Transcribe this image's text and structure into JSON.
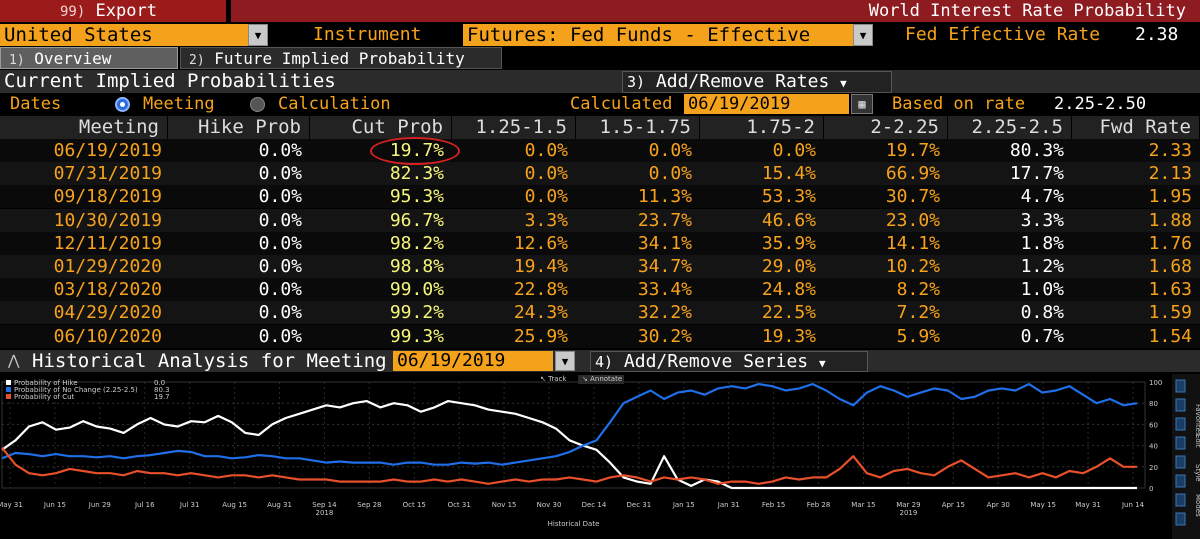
{
  "toolbar": {
    "export_key": "99)",
    "export_label": "Export",
    "title": "World Interest Rate Probability"
  },
  "selectors": {
    "country": "United States",
    "instrument_label": "Instrument",
    "instrument": "Futures: Fed Funds - Effective",
    "fed_rate_label": "Fed Effective Rate",
    "fed_rate_value": "2.38"
  },
  "tabs": [
    {
      "key": "1)",
      "label": "Overview"
    },
    {
      "key": "2)",
      "label": "Future Implied Probability"
    }
  ],
  "current": {
    "title": "Current Implied Probabilities",
    "add_remove_key": "3)",
    "add_remove_label": "Add/Remove Rates",
    "dates_label": "Dates",
    "meeting_label": "Meeting",
    "calculation_label": "Calculation",
    "calculated_label": "Calculated",
    "calculated_date": "06/19/2019",
    "based_on_label": "Based on rate",
    "based_on_value": "2.25-2.50"
  },
  "table": {
    "headers": [
      "Meeting",
      "Hike Prob",
      "Cut Prob",
      "1.25-1.5",
      "1.5-1.75",
      "1.75-2",
      "2-2.25",
      "2.25-2.5",
      "Fwd Rate"
    ],
    "rows": [
      [
        "06/19/2019",
        "0.0%",
        "19.7%",
        "0.0%",
        "0.0%",
        "0.0%",
        "19.7%",
        "80.3%",
        "2.33"
      ],
      [
        "07/31/2019",
        "0.0%",
        "82.3%",
        "0.0%",
        "0.0%",
        "15.4%",
        "66.9%",
        "17.7%",
        "2.13"
      ],
      [
        "09/18/2019",
        "0.0%",
        "95.3%",
        "0.0%",
        "11.3%",
        "53.3%",
        "30.7%",
        "4.7%",
        "1.95"
      ],
      [
        "10/30/2019",
        "0.0%",
        "96.7%",
        "3.3%",
        "23.7%",
        "46.6%",
        "23.0%",
        "3.3%",
        "1.88"
      ],
      [
        "12/11/2019",
        "0.0%",
        "98.2%",
        "12.6%",
        "34.1%",
        "35.9%",
        "14.1%",
        "1.8%",
        "1.76"
      ],
      [
        "01/29/2020",
        "0.0%",
        "98.8%",
        "19.4%",
        "34.7%",
        "29.0%",
        "10.2%",
        "1.2%",
        "1.68"
      ],
      [
        "03/18/2020",
        "0.0%",
        "99.0%",
        "22.8%",
        "33.4%",
        "24.8%",
        "8.2%",
        "1.0%",
        "1.63"
      ],
      [
        "04/29/2020",
        "0.0%",
        "99.2%",
        "24.3%",
        "32.2%",
        "22.5%",
        "7.2%",
        "0.8%",
        "1.59"
      ],
      [
        "06/10/2020",
        "0.0%",
        "99.3%",
        "25.9%",
        "30.2%",
        "19.3%",
        "5.9%",
        "0.7%",
        "1.54"
      ]
    ]
  },
  "historical": {
    "title": "Historical Analysis for Meeting",
    "meeting_date": "06/19/2019",
    "add_series_key": "4)",
    "add_series_label": "Add/Remove Series",
    "track_label": "Track",
    "annotate_label": "Annotate",
    "side_labels": [
      "Favorites",
      "Edit",
      "Style",
      "Modes"
    ]
  },
  "chart_data": {
    "type": "line",
    "xlabel": "Historical Date",
    "ylim": [
      0,
      100
    ],
    "yticks": [
      "100",
      "80",
      "60",
      "40",
      "20",
      "0"
    ],
    "xticks": [
      "May 31",
      "Jun 15",
      "Jun 29",
      "Jul 16",
      "Jul 31",
      "Aug 15",
      "Aug 31",
      "Sep 14",
      "Sep 28",
      "Oct 15",
      "Oct 31",
      "Nov 15",
      "Nov 30",
      "Dec 14",
      "Dec 31",
      "Jan 15",
      "Jan 31",
      "Feb 15",
      "Feb 28",
      "Mar 15",
      "Mar 29",
      "Apr 15",
      "Apr 30",
      "May 15",
      "May 31",
      "Jun 14"
    ],
    "year_labels": [
      "2018",
      "2019"
    ],
    "series": [
      {
        "name": "Probability of Hike",
        "last": "0.0",
        "color": "#ffffff",
        "values": [
          36,
          45,
          58,
          62,
          55,
          57,
          63,
          58,
          56,
          52,
          60,
          66,
          60,
          58,
          63,
          62,
          68,
          62,
          52,
          50,
          60,
          66,
          70,
          74,
          78,
          76,
          80,
          82,
          76,
          80,
          78,
          72,
          76,
          82,
          80,
          78,
          74,
          72,
          70,
          66,
          62,
          56,
          45,
          40,
          36,
          24,
          10,
          6,
          4,
          30,
          8,
          2,
          8,
          6,
          0,
          0,
          0,
          0,
          0,
          0,
          0,
          0,
          0,
          0,
          0,
          0,
          0,
          0,
          0,
          0,
          0,
          0,
          0,
          0,
          0,
          0,
          0,
          0,
          0,
          0,
          0,
          0,
          0,
          0,
          0
        ]
      },
      {
        "name": "Probability of No Change (2.25-2.5)",
        "last": "80.3",
        "color": "#1f6fe8",
        "values": [
          28,
          33,
          32,
          30,
          32,
          30,
          30,
          29,
          30,
          28,
          30,
          31,
          33,
          35,
          34,
          30,
          30,
          28,
          29,
          31,
          30,
          28,
          28,
          26,
          24,
          25,
          24,
          24,
          24,
          22,
          24,
          24,
          22,
          22,
          24,
          23,
          24,
          22,
          24,
          26,
          28,
          30,
          34,
          40,
          45,
          62,
          80,
          86,
          92,
          84,
          90,
          92,
          88,
          94,
          96,
          94,
          98,
          96,
          92,
          94,
          98,
          92,
          84,
          78,
          90,
          96,
          92,
          86,
          90,
          94,
          92,
          84,
          86,
          92,
          94,
          92,
          98,
          90,
          92,
          96,
          88,
          80,
          84,
          78,
          80
        ]
      },
      {
        "name": "Probability of Cut",
        "last": "19.7",
        "color": "#e8502a",
        "values": [
          38,
          22,
          14,
          12,
          14,
          18,
          16,
          14,
          14,
          12,
          16,
          14,
          14,
          12,
          14,
          12,
          10,
          12,
          12,
          10,
          12,
          10,
          8,
          8,
          8,
          6,
          6,
          6,
          6,
          8,
          6,
          6,
          8,
          6,
          8,
          6,
          4,
          6,
          8,
          6,
          8,
          8,
          10,
          8,
          6,
          10,
          12,
          10,
          6,
          10,
          8,
          10,
          8,
          4,
          6,
          6,
          4,
          6,
          10,
          8,
          10,
          10,
          18,
          30,
          14,
          10,
          16,
          18,
          14,
          12,
          20,
          26,
          18,
          10,
          12,
          14,
          10,
          14,
          10,
          16,
          14,
          20,
          28,
          20,
          20
        ]
      }
    ]
  }
}
